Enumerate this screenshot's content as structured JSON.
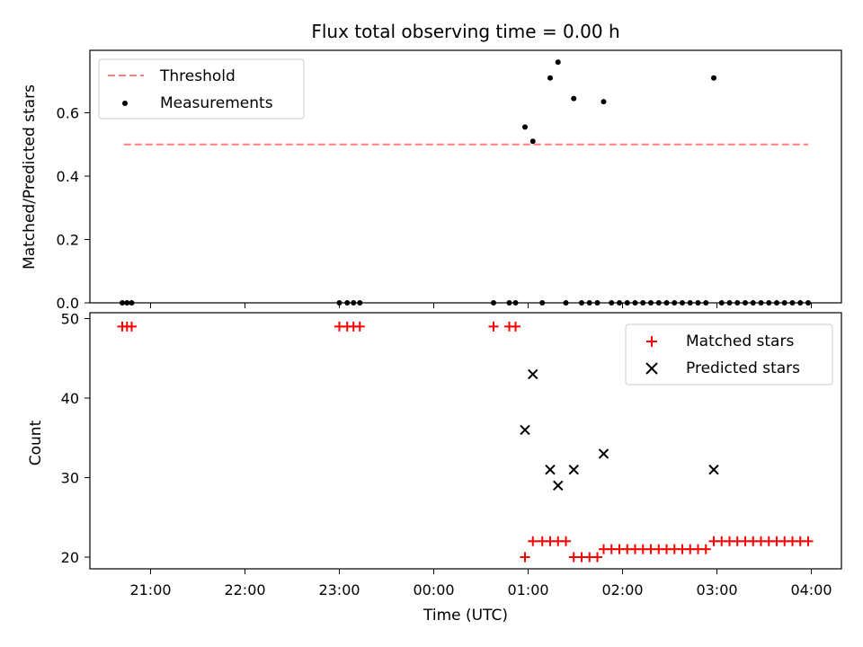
{
  "chart_data": [
    {
      "type": "scatter",
      "title": "Flux total observing time = 0.00 h",
      "ylabel": "Matched/Predicted stars",
      "xlabel": "",
      "ylim": [
        0,
        0.8
      ],
      "yticks": [
        "0.0",
        "0.2",
        "0.4",
        "0.6"
      ],
      "legend_position": "upper-left",
      "threshold": {
        "name": "Threshold",
        "value": 0.5,
        "x_start": "20:43",
        "x_end": "03:58",
        "color": "#ff7f7f",
        "style": "dashed"
      },
      "series": [
        {
          "name": "Measurements",
          "color": "#000000",
          "points": [
            [
              "20:42",
              0
            ],
            [
              "20:45",
              0
            ],
            [
              "20:48",
              0
            ],
            [
              "23:00",
              0
            ],
            [
              "23:05",
              0
            ],
            [
              "23:09",
              0
            ],
            [
              "23:13",
              0
            ],
            [
              "00:38",
              0
            ],
            [
              "00:48",
              0
            ],
            [
              "00:52",
              0
            ],
            [
              "00:58",
              0.555
            ],
            [
              "01:03",
              0.51
            ],
            [
              "01:09",
              0
            ],
            [
              "01:14",
              0.71
            ],
            [
              "01:19",
              0.76
            ],
            [
              "01:24",
              0
            ],
            [
              "01:29",
              0.645
            ],
            [
              "01:34",
              0
            ],
            [
              "01:39",
              0
            ],
            [
              "01:44",
              0
            ],
            [
              "01:48",
              0.635
            ],
            [
              "01:53",
              0
            ],
            [
              "01:58",
              0
            ],
            [
              "02:03",
              0
            ],
            [
              "02:08",
              0
            ],
            [
              "02:13",
              0
            ],
            [
              "02:18",
              0
            ],
            [
              "02:23",
              0
            ],
            [
              "02:28",
              0
            ],
            [
              "02:33",
              0
            ],
            [
              "02:38",
              0
            ],
            [
              "02:43",
              0
            ],
            [
              "02:48",
              0
            ],
            [
              "02:53",
              0
            ],
            [
              "02:58",
              0.71
            ],
            [
              "03:03",
              0
            ],
            [
              "03:08",
              0
            ],
            [
              "03:13",
              0
            ],
            [
              "03:18",
              0
            ],
            [
              "03:23",
              0
            ],
            [
              "03:28",
              0
            ],
            [
              "03:33",
              0
            ],
            [
              "03:38",
              0
            ],
            [
              "03:43",
              0
            ],
            [
              "03:48",
              0
            ],
            [
              "03:53",
              0
            ],
            [
              "03:58",
              0
            ]
          ]
        }
      ]
    },
    {
      "type": "scatter",
      "title": "",
      "ylabel": "Count",
      "xlabel": "Time (UTC)",
      "ylim": [
        19,
        50
      ],
      "yticks": [
        "20",
        "30",
        "40",
        "50"
      ],
      "xticks": [
        "21:00",
        "22:00",
        "23:00",
        "00:00",
        "01:00",
        "02:00",
        "03:00",
        "04:00"
      ],
      "legend_position": "upper-right",
      "series": [
        {
          "name": "Matched stars",
          "marker": "plus",
          "color": "#ff0000",
          "points": [
            [
              "20:42",
              49
            ],
            [
              "20:45",
              49
            ],
            [
              "20:48",
              49
            ],
            [
              "23:00",
              49
            ],
            [
              "23:05",
              49
            ],
            [
              "23:09",
              49
            ],
            [
              "23:13",
              49
            ],
            [
              "00:38",
              49
            ],
            [
              "00:48",
              49
            ],
            [
              "00:52",
              49
            ],
            [
              "00:58",
              20
            ],
            [
              "01:03",
              22
            ],
            [
              "01:09",
              22
            ],
            [
              "01:14",
              22
            ],
            [
              "01:19",
              22
            ],
            [
              "01:24",
              22
            ],
            [
              "01:29",
              20
            ],
            [
              "01:34",
              20
            ],
            [
              "01:39",
              20
            ],
            [
              "01:44",
              20
            ],
            [
              "01:48",
              21
            ],
            [
              "01:53",
              21
            ],
            [
              "01:58",
              21
            ],
            [
              "02:03",
              21
            ],
            [
              "02:08",
              21
            ],
            [
              "02:13",
              21
            ],
            [
              "02:18",
              21
            ],
            [
              "02:23",
              21
            ],
            [
              "02:28",
              21
            ],
            [
              "02:33",
              21
            ],
            [
              "02:38",
              21
            ],
            [
              "02:43",
              21
            ],
            [
              "02:48",
              21
            ],
            [
              "02:53",
              21
            ],
            [
              "02:58",
              22
            ],
            [
              "03:03",
              22
            ],
            [
              "03:08",
              22
            ],
            [
              "03:13",
              22
            ],
            [
              "03:18",
              22
            ],
            [
              "03:23",
              22
            ],
            [
              "03:28",
              22
            ],
            [
              "03:33",
              22
            ],
            [
              "03:38",
              22
            ],
            [
              "03:43",
              22
            ],
            [
              "03:48",
              22
            ],
            [
              "03:53",
              22
            ],
            [
              "03:58",
              22
            ]
          ]
        },
        {
          "name": "Predicted stars",
          "marker": "x",
          "color": "#000000",
          "points": [
            [
              "00:58",
              36
            ],
            [
              "01:03",
              43
            ],
            [
              "01:14",
              31
            ],
            [
              "01:19",
              29
            ],
            [
              "01:29",
              31
            ],
            [
              "01:48",
              33
            ],
            [
              "02:58",
              31
            ]
          ]
        }
      ]
    }
  ]
}
